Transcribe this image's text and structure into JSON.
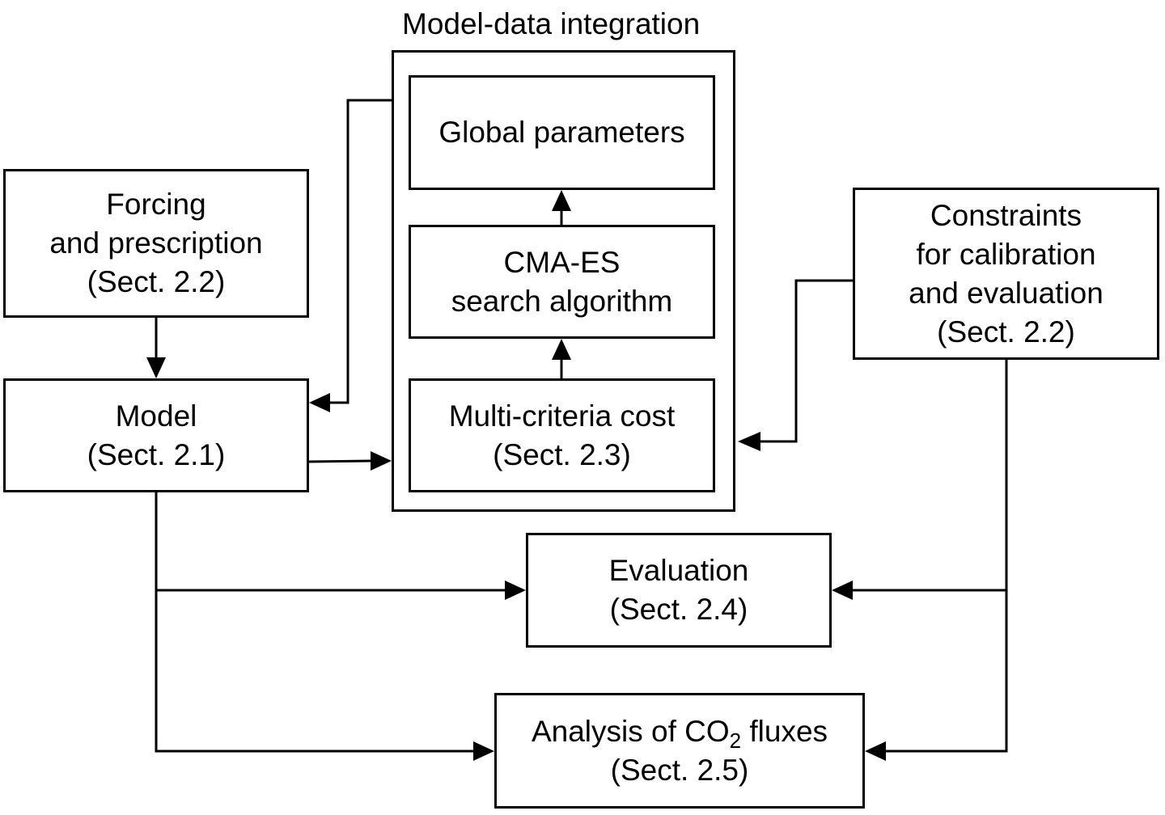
{
  "group": {
    "title": "Model-data integration"
  },
  "boxes": {
    "forcing": {
      "line1": "Forcing",
      "line2": "and prescription",
      "line3": "(Sect. 2.2)"
    },
    "model": {
      "line1": "Model",
      "line2": "(Sect. 2.1)"
    },
    "global_parameters": {
      "line1": "Global parameters"
    },
    "cma_es": {
      "line1": "CMA-ES",
      "line2": "search algorithm"
    },
    "cost": {
      "line1": "Multi-criteria cost",
      "line2": "(Sect. 2.3)"
    },
    "constraints": {
      "line1": "Constraints",
      "line2": "for calibration",
      "line3": "and evaluation",
      "line4": "(Sect. 2.2)"
    },
    "evaluation": {
      "line1": "Evaluation",
      "line2": "(Sect. 2.4)"
    },
    "analysis": {
      "line1_pre": "Analysis of CO",
      "line1_sub": "2",
      "line1_post": " fluxes",
      "line2": "(Sect. 2.5)"
    }
  },
  "connections": [
    {
      "from": "forcing",
      "to": "model"
    },
    {
      "from": "model-data-integration",
      "to": "model"
    },
    {
      "from": "model",
      "to": "model-data-integration"
    },
    {
      "from": "cost",
      "to": "cma_es"
    },
    {
      "from": "cma_es",
      "to": "global_parameters"
    },
    {
      "from": "constraints",
      "to": "cost"
    },
    {
      "from": "model",
      "to": "evaluation"
    },
    {
      "from": "model",
      "to": "analysis"
    },
    {
      "from": "constraints",
      "to": "evaluation"
    },
    {
      "from": "constraints",
      "to": "analysis"
    }
  ]
}
